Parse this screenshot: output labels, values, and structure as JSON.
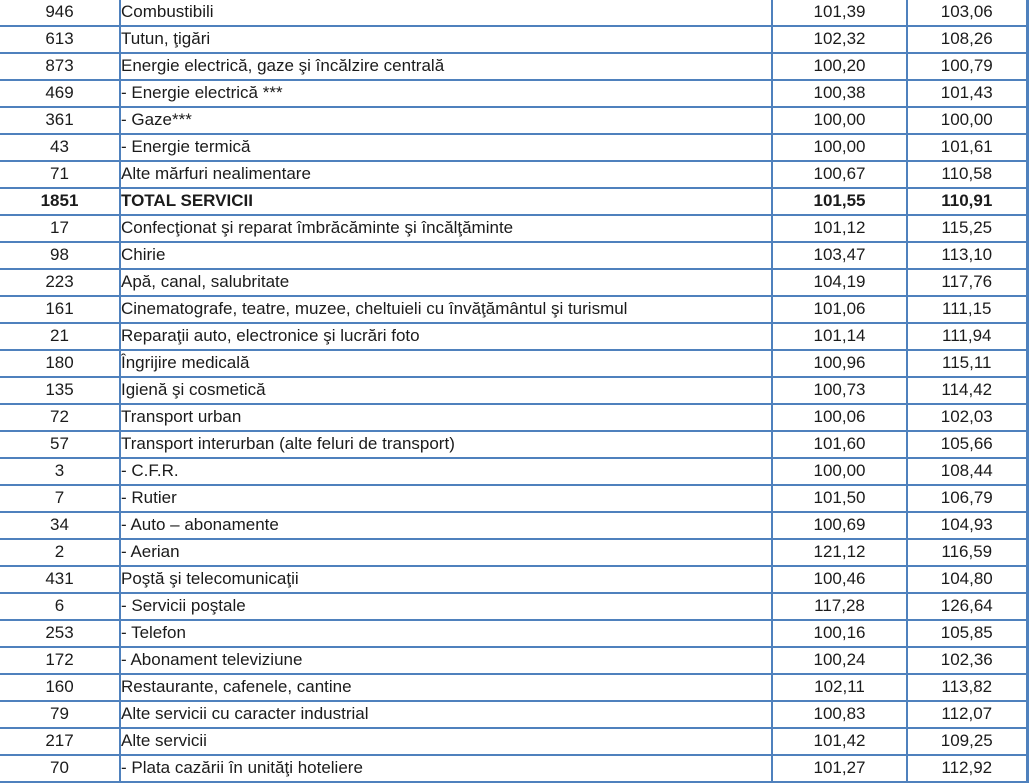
{
  "table": {
    "name": "consumer-price-index-table",
    "border_color": "#4F81BD",
    "columns": {
      "weight": "weight",
      "name": "category",
      "value1": "index-current",
      "value2": "index-cumulative"
    },
    "rows": [
      {
        "weight": "946",
        "name": "Combustibili",
        "v1": "101,39",
        "v2": "103,06",
        "bold": false
      },
      {
        "weight": "613",
        "name": "Tutun, ţigări",
        "v1": "102,32",
        "v2": "108,26",
        "bold": false
      },
      {
        "weight": "873",
        "name": "Energie electrică, gaze şi încălzire centrală",
        "v1": "100,20",
        "v2": "100,79",
        "bold": false
      },
      {
        "weight": "469",
        "name": "- Energie electrică ***",
        "v1": "100,38",
        "v2": "101,43",
        "bold": false
      },
      {
        "weight": "361",
        "name": "- Gaze***",
        "v1": "100,00",
        "v2": "100,00",
        "bold": false
      },
      {
        "weight": "43",
        "name": "- Energie termică",
        "v1": "100,00",
        "v2": "101,61",
        "bold": false
      },
      {
        "weight": "71",
        "name": "Alte mărfuri nealimentare",
        "v1": "100,67",
        "v2": "110,58",
        "bold": false
      },
      {
        "weight": "1851",
        "name": "TOTAL SERVICII",
        "v1": "101,55",
        "v2": "110,91",
        "bold": true
      },
      {
        "weight": "17",
        "name": "Confecţionat şi reparat îmbrăcăminte şi încălţăminte",
        "v1": "101,12",
        "v2": "115,25",
        "bold": false
      },
      {
        "weight": "98",
        "name": "Chirie",
        "v1": "103,47",
        "v2": "113,10",
        "bold": false
      },
      {
        "weight": "223",
        "name": "Apă, canal, salubritate",
        "v1": "104,19",
        "v2": "117,76",
        "bold": false
      },
      {
        "weight": "161",
        "name": "Cinematografe, teatre, muzee, cheltuieli cu învăţământul şi turismul",
        "v1": "101,06",
        "v2": "111,15",
        "bold": false
      },
      {
        "weight": "21",
        "name": "Reparaţii auto, electronice şi lucrări foto",
        "v1": "101,14",
        "v2": "111,94",
        "bold": false
      },
      {
        "weight": "180",
        "name": "Îngrijire medicală",
        "v1": "100,96",
        "v2": "115,11",
        "bold": false
      },
      {
        "weight": "135",
        "name": "Igienă şi cosmetică",
        "v1": "100,73",
        "v2": "114,42",
        "bold": false
      },
      {
        "weight": "72",
        "name": "Transport urban",
        "v1": "100,06",
        "v2": "102,03",
        "bold": false
      },
      {
        "weight": "57",
        "name": "Transport interurban (alte feluri de transport)",
        "v1": "101,60",
        "v2": "105,66",
        "bold": false
      },
      {
        "weight": "3",
        "name": "- C.F.R.",
        "v1": "100,00",
        "v2": "108,44",
        "bold": false
      },
      {
        "weight": "7",
        "name": "- Rutier",
        "v1": "101,50",
        "v2": "106,79",
        "bold": false
      },
      {
        "weight": "34",
        "name": "- Auto – abonamente",
        "v1": "100,69",
        "v2": "104,93",
        "bold": false
      },
      {
        "weight": "2",
        "name": "- Aerian",
        "v1": "121,12",
        "v2": "116,59",
        "bold": false
      },
      {
        "weight": "431",
        "name": "Poştă şi telecomunicaţii",
        "v1": "100,46",
        "v2": "104,80",
        "bold": false
      },
      {
        "weight": "6",
        "name": "- Servicii poştale",
        "v1": "117,28",
        "v2": "126,64",
        "bold": false
      },
      {
        "weight": "253",
        "name": "- Telefon",
        "v1": "100,16",
        "v2": "105,85",
        "bold": false
      },
      {
        "weight": "172",
        "name": "- Abonament televiziune",
        "v1": "100,24",
        "v2": "102,36",
        "bold": false
      },
      {
        "weight": "160",
        "name": "Restaurante, cafenele, cantine",
        "v1": "102,11",
        "v2": "113,82",
        "bold": false
      },
      {
        "weight": "79",
        "name": "Alte servicii cu caracter industrial",
        "v1": "100,83",
        "v2": "112,07",
        "bold": false
      },
      {
        "weight": "217",
        "name": "Alte servicii",
        "v1": "101,42",
        "v2": "109,25",
        "bold": false
      },
      {
        "weight": "70",
        "name": "- Plata cazării în unităţi hoteliere",
        "v1": "101,27",
        "v2": "112,92",
        "bold": false
      }
    ]
  }
}
